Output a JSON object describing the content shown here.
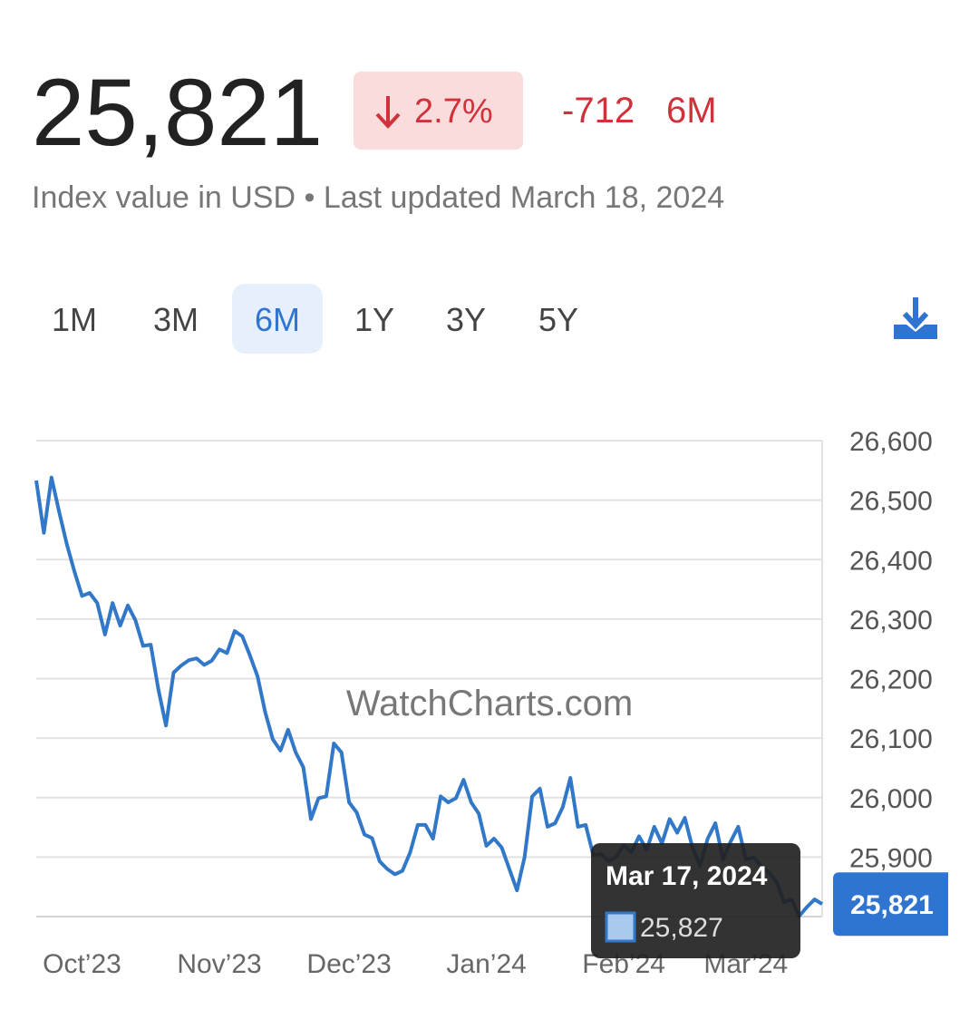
{
  "header": {
    "price": "25,821",
    "change_pct": "2.7%",
    "change": "-712",
    "period": "6M",
    "subtitle": "Index value in USD • Last updated March 18, 2024"
  },
  "tabs": [
    "1M",
    "3M",
    "6M",
    "1Y",
    "3Y",
    "5Y"
  ],
  "selected_tab": 2,
  "chart_data": {
    "type": "line",
    "watermark": "WatchCharts.com",
    "series": [
      {
        "name": "Index value",
        "color": "#3278c8",
        "values": [
          26533,
          26445,
          26538,
          26480,
          26426,
          26380,
          26339,
          26344,
          26327,
          26274,
          26327,
          26289,
          26323,
          26298,
          26255,
          26257,
          26182,
          26121,
          26210,
          26222,
          26231,
          26234,
          26223,
          26230,
          26249,
          26243,
          26280,
          26271,
          26239,
          26204,
          26144,
          26098,
          26079,
          26114,
          26076,
          26051,
          25964,
          25999,
          26002,
          26091,
          26076,
          25992,
          25975,
          25938,
          25932,
          25893,
          25880,
          25871,
          25877,
          25908,
          25954,
          25954,
          25931,
          26002,
          25992,
          25999,
          26030,
          25992,
          25973,
          25919,
          25931,
          25916,
          25880,
          25844,
          25900,
          26002,
          26015,
          25951,
          25957,
          25984,
          26033,
          25951,
          25954,
          25903,
          25905,
          25893,
          25900,
          25920,
          25908,
          25935,
          25912,
          25951,
          25923,
          25964,
          25941,
          25966,
          25916,
          25885,
          25931,
          25957,
          25896,
          25926,
          25951,
          25896,
          25900,
          25885,
          25874,
          25859,
          25824,
          25829,
          25801,
          25816,
          25829,
          25821
        ]
      }
    ],
    "xlim": [
      0,
      103
    ],
    "xticks": [
      {
        "value": 6,
        "label": "Oct’23"
      },
      {
        "value": 24,
        "label": "Nov’23"
      },
      {
        "value": 41,
        "label": "Dec’23"
      },
      {
        "value": 59,
        "label": "Jan’24"
      },
      {
        "value": 77,
        "label": "Feb’24"
      },
      {
        "value": 93,
        "label": "Mar’24"
      }
    ],
    "ylim": [
      25800,
      26600
    ],
    "yticks": [
      {
        "value": 25900,
        "label": "25,900"
      },
      {
        "value": 26000,
        "label": "26,000"
      },
      {
        "value": 26100,
        "label": "26,100"
      },
      {
        "value": 26200,
        "label": "26,200"
      },
      {
        "value": 26300,
        "label": "26,300"
      },
      {
        "value": 26400,
        "label": "26,400"
      },
      {
        "value": 26500,
        "label": "26,500"
      },
      {
        "value": 26600,
        "label": "26,600"
      }
    ],
    "grid": true,
    "last_value": {
      "value": 25821,
      "label": "25,821"
    },
    "tooltip": {
      "date": "Mar 17, 2024",
      "value_label": "25,827"
    }
  }
}
